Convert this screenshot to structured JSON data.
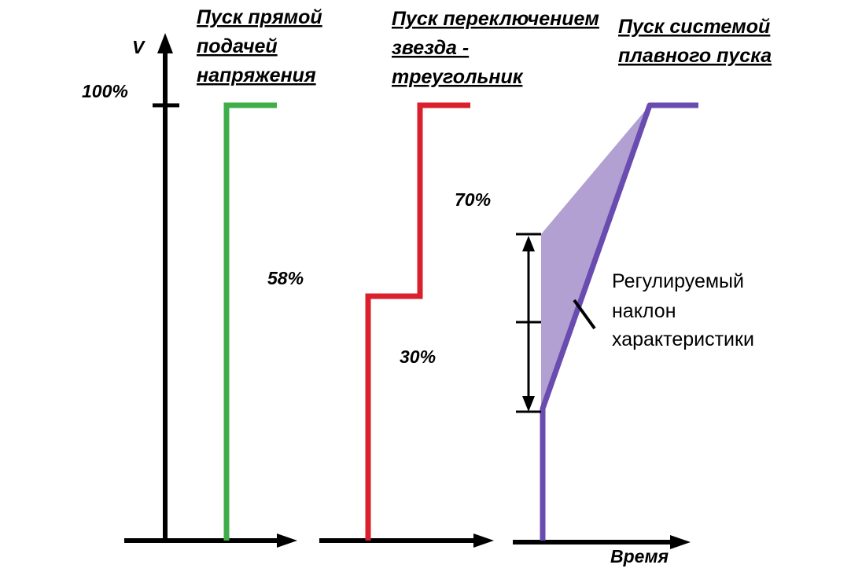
{
  "titles": {
    "direct": [
      "Пуск прямой",
      "подачей",
      "напряжения"
    ],
    "star_delta": [
      "Пуск переключением",
      "звезда -",
      "треугольник"
    ],
    "soft_start": [
      "Пуск системой",
      "плавного пуска"
    ]
  },
  "axis": {
    "y_label": "V",
    "x_label": "Время",
    "level_100": "100%"
  },
  "annotations": {
    "p58": "58%",
    "p70": "70%",
    "p30": "30%",
    "adjustable_slope": [
      "Регулируемый",
      "наклон",
      "характеристики"
    ]
  },
  "colors": {
    "direct": "#3fae49",
    "star_delta": "#d9202c",
    "soft_start": "#6a4bb0",
    "soft_start_fill": "#a896cc",
    "axis": "#000000"
  }
}
